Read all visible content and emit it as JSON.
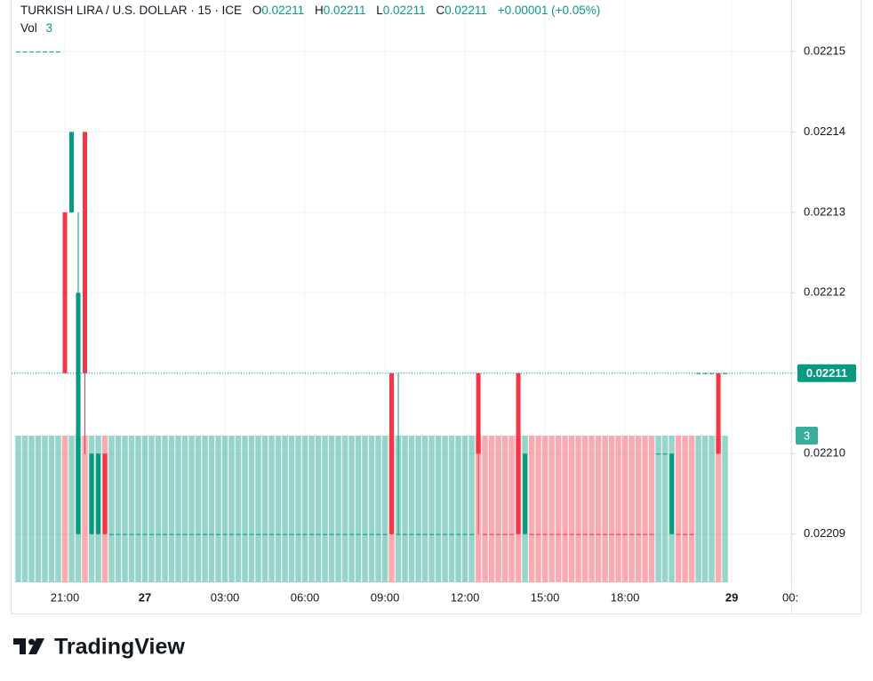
{
  "chart_data": {
    "type": "candlestick",
    "title": "TURKISH LIRA / U.S. DOLLAR · 15 · ICE",
    "ohlc_labels": [
      "O",
      "H",
      "L",
      "C"
    ],
    "change_label": "+0.00001 (+0.05%)",
    "volume_label": "Vol",
    "up_color": "#089981",
    "down_color": "#f23645",
    "grid": true,
    "xlim": [
      19,
      48.23
    ],
    "xticks": [
      {
        "value": 21,
        "label": "21:00"
      },
      {
        "value": 24,
        "label": "27"
      },
      {
        "value": 27,
        "label": "03:00"
      },
      {
        "value": 30,
        "label": "06:00"
      },
      {
        "value": 33,
        "label": "09:00"
      },
      {
        "value": 36,
        "label": "12:00"
      },
      {
        "value": 39,
        "label": "15:00"
      },
      {
        "value": 42,
        "label": "18:00"
      },
      {
        "value": 46,
        "label": "29"
      },
      {
        "value": 48.2,
        "label": "00:"
      }
    ],
    "ylim": [
      0.022084,
      0.0221564
    ],
    "yticks": [
      0.02209,
      {
        "value": 0.0221,
        "label": "0.02210"
      },
      0.02211,
      0.02212,
      0.02213,
      0.02214,
      0.02215
    ],
    "y2lim": [
      0,
      3
    ],
    "x": [
      19.25,
      19.5,
      19.75,
      20,
      20.25,
      20.5,
      20.75,
      21,
      21.25,
      21.5,
      21.75,
      22,
      22.25,
      22.5,
      22.75,
      23,
      23.25,
      23.5,
      23.75,
      24,
      24.25,
      24.5,
      24.75,
      25,
      25.25,
      25.5,
      25.75,
      26,
      26.25,
      26.5,
      26.75,
      27,
      27.25,
      27.5,
      27.75,
      28,
      28.25,
      28.5,
      28.75,
      29,
      29.25,
      29.5,
      29.75,
      30,
      30.25,
      30.5,
      30.75,
      31,
      31.25,
      31.5,
      31.75,
      32,
      32.25,
      32.5,
      32.75,
      33,
      33.25,
      33.5,
      33.75,
      34,
      34.25,
      34.5,
      34.75,
      35,
      35.25,
      35.5,
      35.75,
      36,
      36.25,
      36.5,
      36.75,
      37,
      37.25,
      37.5,
      37.75,
      38,
      38.25,
      38.5,
      38.75,
      39,
      39.25,
      39.5,
      39.75,
      40,
      40.25,
      40.5,
      40.75,
      41,
      41.25,
      41.5,
      41.75,
      42,
      42.25,
      42.5,
      42.75,
      43,
      43.25,
      43.5,
      43.75,
      44,
      44.25,
      44.5,
      44.75,
      45,
      45.25,
      45.5,
      45.75
    ],
    "open": [
      0.02215,
      0.02215,
      0.02215,
      0.02215,
      0.02215,
      0.02215,
      0.02215,
      0.02213,
      0.02213,
      0.02209,
      0.02214,
      0.02209,
      0.02209,
      0.0221,
      0.02209,
      0.02209,
      0.02209,
      0.02209,
      0.02209,
      0.02209,
      0.02209,
      0.02209,
      0.02209,
      0.02209,
      0.02209,
      0.02209,
      0.02209,
      0.02209,
      0.02209,
      0.02209,
      0.02209,
      0.02209,
      0.02209,
      0.02209,
      0.02209,
      0.02209,
      0.02209,
      0.02209,
      0.02209,
      0.02209,
      0.02209,
      0.02209,
      0.02209,
      0.02209,
      0.02209,
      0.02209,
      0.02209,
      0.02209,
      0.02209,
      0.02209,
      0.02209,
      0.02209,
      0.02209,
      0.02209,
      0.02209,
      0.02209,
      0.02211,
      0.02209,
      0.02209,
      0.02209,
      0.02209,
      0.02209,
      0.02209,
      0.02209,
      0.02209,
      0.02209,
      0.02209,
      0.02209,
      0.02209,
      0.02211,
      0.02209,
      0.02209,
      0.02209,
      0.02209,
      0.02209,
      0.02211,
      0.02209,
      0.02209,
      0.02209,
      0.02209,
      0.02209,
      0.02209,
      0.02209,
      0.02209,
      0.02209,
      0.02209,
      0.02209,
      0.02209,
      0.02209,
      0.02209,
      0.02209,
      0.02209,
      0.02209,
      0.02209,
      0.02209,
      0.02209,
      0.0221,
      0.0221,
      0.02209,
      0.02209,
      0.02209,
      0.02209,
      0.02211,
      0.02211,
      0.02211,
      0.02211,
      0.02211
    ],
    "high": [
      0.02215,
      0.02215,
      0.02215,
      0.02215,
      0.02215,
      0.02215,
      0.02215,
      0.02213,
      0.02214,
      0.02213,
      0.02214,
      0.0221,
      0.0221,
      0.0221,
      0.02209,
      0.02209,
      0.02209,
      0.02209,
      0.02209,
      0.02209,
      0.02209,
      0.02209,
      0.02209,
      0.02209,
      0.02209,
      0.02209,
      0.02209,
      0.02209,
      0.02209,
      0.02209,
      0.02209,
      0.02209,
      0.02209,
      0.02209,
      0.02209,
      0.02209,
      0.02209,
      0.02209,
      0.02209,
      0.02209,
      0.02209,
      0.02209,
      0.02209,
      0.02209,
      0.02209,
      0.02209,
      0.02209,
      0.02209,
      0.02209,
      0.02209,
      0.02209,
      0.02209,
      0.02209,
      0.02209,
      0.02209,
      0.02209,
      0.02211,
      0.02211,
      0.02209,
      0.02209,
      0.02209,
      0.02209,
      0.02209,
      0.02209,
      0.02209,
      0.02209,
      0.02209,
      0.02209,
      0.02209,
      0.02211,
      0.02209,
      0.02209,
      0.02209,
      0.02209,
      0.02209,
      0.02211,
      0.0221,
      0.02209,
      0.02209,
      0.02209,
      0.02209,
      0.02209,
      0.02209,
      0.02209,
      0.02209,
      0.02209,
      0.02209,
      0.02209,
      0.02209,
      0.02209,
      0.02209,
      0.02209,
      0.02209,
      0.02209,
      0.02209,
      0.02209,
      0.0221,
      0.0221,
      0.0221,
      0.02209,
      0.02209,
      0.02209,
      0.02211,
      0.02211,
      0.02211,
      0.02211,
      0.02211
    ],
    "low": [
      0.02215,
      0.02215,
      0.02215,
      0.02215,
      0.02215,
      0.02215,
      0.02215,
      0.02211,
      0.02213,
      0.02209,
      0.0221,
      0.02209,
      0.02209,
      0.02209,
      0.02209,
      0.02209,
      0.02209,
      0.02209,
      0.02209,
      0.02209,
      0.02209,
      0.02209,
      0.02209,
      0.02209,
      0.02209,
      0.02209,
      0.02209,
      0.02209,
      0.02209,
      0.02209,
      0.02209,
      0.02209,
      0.02209,
      0.02209,
      0.02209,
      0.02209,
      0.02209,
      0.02209,
      0.02209,
      0.02209,
      0.02209,
      0.02209,
      0.02209,
      0.02209,
      0.02209,
      0.02209,
      0.02209,
      0.02209,
      0.02209,
      0.02209,
      0.02209,
      0.02209,
      0.02209,
      0.02209,
      0.02209,
      0.02209,
      0.02209,
      0.02209,
      0.02209,
      0.02209,
      0.02209,
      0.02209,
      0.02209,
      0.02209,
      0.02209,
      0.02209,
      0.02209,
      0.02209,
      0.02209,
      0.02209,
      0.02209,
      0.02209,
      0.02209,
      0.02209,
      0.02209,
      0.02209,
      0.02209,
      0.02209,
      0.02209,
      0.02209,
      0.02209,
      0.02209,
      0.02209,
      0.02209,
      0.02209,
      0.02209,
      0.02209,
      0.02209,
      0.02209,
      0.02209,
      0.02209,
      0.02209,
      0.02209,
      0.02209,
      0.02209,
      0.02209,
      0.0221,
      0.0221,
      0.02209,
      0.02209,
      0.02209,
      0.02209,
      0.02211,
      0.02211,
      0.02211,
      0.0221,
      0.02211
    ],
    "close": [
      0.02215,
      0.02215,
      0.02215,
      0.02215,
      0.02215,
      0.02215,
      0.02215,
      0.02211,
      0.02214,
      0.02212,
      0.02211,
      0.0221,
      0.0221,
      0.02209,
      0.02209,
      0.02209,
      0.02209,
      0.02209,
      0.02209,
      0.02209,
      0.02209,
      0.02209,
      0.02209,
      0.02209,
      0.02209,
      0.02209,
      0.02209,
      0.02209,
      0.02209,
      0.02209,
      0.02209,
      0.02209,
      0.02209,
      0.02209,
      0.02209,
      0.02209,
      0.02209,
      0.02209,
      0.02209,
      0.02209,
      0.02209,
      0.02209,
      0.02209,
      0.02209,
      0.02209,
      0.02209,
      0.02209,
      0.02209,
      0.02209,
      0.02209,
      0.02209,
      0.02209,
      0.02209,
      0.02209,
      0.02209,
      0.02209,
      0.02209,
      0.02209,
      0.02209,
      0.02209,
      0.02209,
      0.02209,
      0.02209,
      0.02209,
      0.02209,
      0.02209,
      0.02209,
      0.02209,
      0.02209,
      0.0221,
      0.02209,
      0.02209,
      0.02209,
      0.02209,
      0.02209,
      0.02209,
      0.0221,
      0.02209,
      0.02209,
      0.02209,
      0.02209,
      0.02209,
      0.02209,
      0.02209,
      0.02209,
      0.02209,
      0.02209,
      0.02209,
      0.02209,
      0.02209,
      0.02209,
      0.02209,
      0.02209,
      0.02209,
      0.02209,
      0.02209,
      0.0221,
      0.0221,
      0.0221,
      0.02209,
      0.02209,
      0.02209,
      0.02211,
      0.02211,
      0.02211,
      0.0221,
      0.02211
    ],
    "volume": [
      3,
      3,
      3,
      3,
      3,
      3,
      3,
      3,
      3,
      3,
      3,
      3,
      3,
      3,
      3,
      3,
      3,
      3,
      3,
      3,
      3,
      3,
      3,
      3,
      3,
      3,
      3,
      3,
      3,
      3,
      3,
      3,
      3,
      3,
      3,
      3,
      3,
      3,
      3,
      3,
      3,
      3,
      3,
      3,
      3,
      3,
      3,
      3,
      3,
      3,
      3,
      3,
      3,
      3,
      3,
      3,
      3,
      3,
      3,
      3,
      3,
      3,
      3,
      3,
      3,
      3,
      3,
      3,
      3,
      3,
      3,
      3,
      3,
      3,
      3,
      3,
      3,
      3,
      3,
      3,
      3,
      3,
      3,
      3,
      3,
      3,
      3,
      3,
      3,
      3,
      3,
      3,
      3,
      3,
      3,
      3,
      3,
      3,
      3,
      3,
      3,
      3,
      3,
      3,
      3,
      3,
      3
    ],
    "colors": [
      "#089981",
      "#089981",
      "#089981",
      "#089981",
      "#089981",
      "#089981",
      "#089981",
      "#f23645",
      "#089981",
      "#089981",
      "#f23645",
      "#089981",
      "#089981",
      "#f23645",
      "#089981",
      "#089981",
      "#089981",
      "#089981",
      "#089981",
      "#089981",
      "#089981",
      "#089981",
      "#089981",
      "#089981",
      "#089981",
      "#089981",
      "#089981",
      "#089981",
      "#089981",
      "#089981",
      "#089981",
      "#089981",
      "#089981",
      "#089981",
      "#089981",
      "#089981",
      "#089981",
      "#089981",
      "#089981",
      "#089981",
      "#089981",
      "#089981",
      "#089981",
      "#089981",
      "#089981",
      "#089981",
      "#089981",
      "#089981",
      "#089981",
      "#089981",
      "#089981",
      "#089981",
      "#089981",
      "#089981",
      "#089981",
      "#089981",
      "#f23645",
      "#089981",
      "#089981",
      "#089981",
      "#089981",
      "#089981",
      "#089981",
      "#089981",
      "#089981",
      "#089981",
      "#089981",
      "#089981",
      "#089981",
      "#f23645",
      "#f23645",
      "#f23645",
      "#f23645",
      "#f23645",
      "#f23645",
      "#f23645",
      "#089981",
      "#f23645",
      "#f23645",
      "#f23645",
      "#f23645",
      "#f23645",
      "#f23645",
      "#f23645",
      "#f23645",
      "#f23645",
      "#f23645",
      "#f23645",
      "#f23645",
      "#f23645",
      "#f23645",
      "#f23645",
      "#f23645",
      "#f23645",
      "#f23645",
      "#f23645",
      "#089981",
      "#089981",
      "#089981",
      "#f23645",
      "#f23645",
      "#f23645",
      "#089981",
      "#089981",
      "#089981",
      "#f23645",
      "#089981"
    ]
  },
  "footer": {
    "brand": "TradingView"
  }
}
